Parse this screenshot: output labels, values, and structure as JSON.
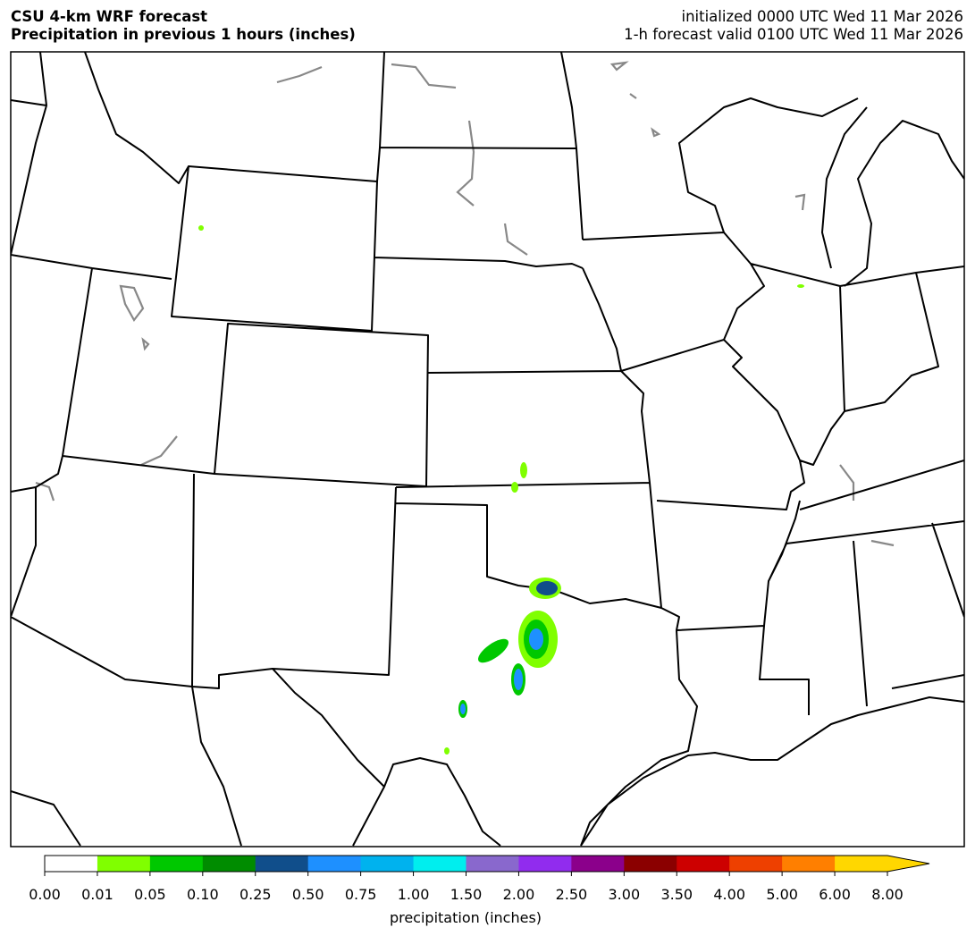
{
  "header": {
    "title": "CSU 4-km WRF forecast",
    "subtitle": "Precipitation in previous 1 hours (inches)",
    "init": "initialized 0000 UTC Wed 11 Mar 2026",
    "valid": "1-h forecast valid 0100 UTC Wed 11 Mar 2026"
  },
  "colorbar": {
    "label": "precipitation (inches)",
    "ticks": [
      "0.00",
      "0.01",
      "0.05",
      "0.10",
      "0.25",
      "0.50",
      "0.75",
      "1.00",
      "1.50",
      "2.00",
      "2.50",
      "3.00",
      "3.50",
      "4.00",
      "5.00",
      "6.00",
      "8.00"
    ],
    "colors": [
      "#ffffff",
      "#80ff00",
      "#00c800",
      "#008c00",
      "#104e8b",
      "#1e90ff",
      "#00b2ee",
      "#00eeee",
      "#8968cd",
      "#912cee",
      "#8b008b",
      "#8b0000",
      "#cd0000",
      "#ee4000",
      "#ff7f00",
      "#ffd700"
    ],
    "extend_color": "#ffd700"
  }
}
